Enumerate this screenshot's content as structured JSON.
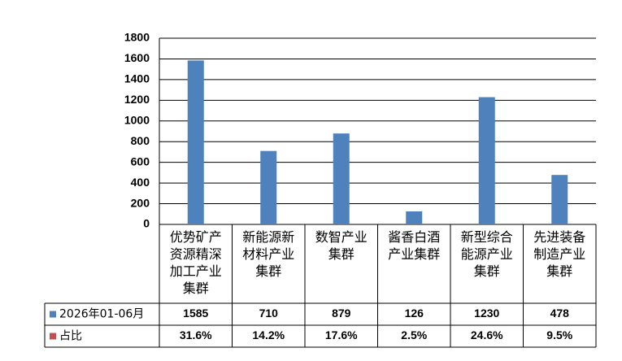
{
  "chart_data": {
    "type": "bar",
    "categories": [
      "优势矿产资源精深加工产业集群",
      "新能源新材料产业集群",
      "数智产业集群",
      "酱香白酒产业集群",
      "新型综合能源产业集群",
      "先进装备制造产业集群"
    ],
    "series": [
      {
        "name": "2026年01-06月",
        "color": "#4f81bd",
        "values": [
          1585,
          710,
          879,
          126,
          1230,
          478
        ]
      },
      {
        "name": "占比",
        "color": "#c0504d",
        "values": [
          31.6,
          14.2,
          17.6,
          2.5,
          24.6,
          9.5
        ],
        "value_labels": [
          "31.6%",
          "14.2%",
          "17.6%",
          "2.5%",
          "24.6%",
          "9.5%"
        ]
      }
    ],
    "ylim": [
      0,
      1800
    ],
    "yticks": [
      0,
      200,
      400,
      600,
      800,
      1000,
      1200,
      1400,
      1600,
      1800
    ],
    "grid": true,
    "data_table": true
  }
}
